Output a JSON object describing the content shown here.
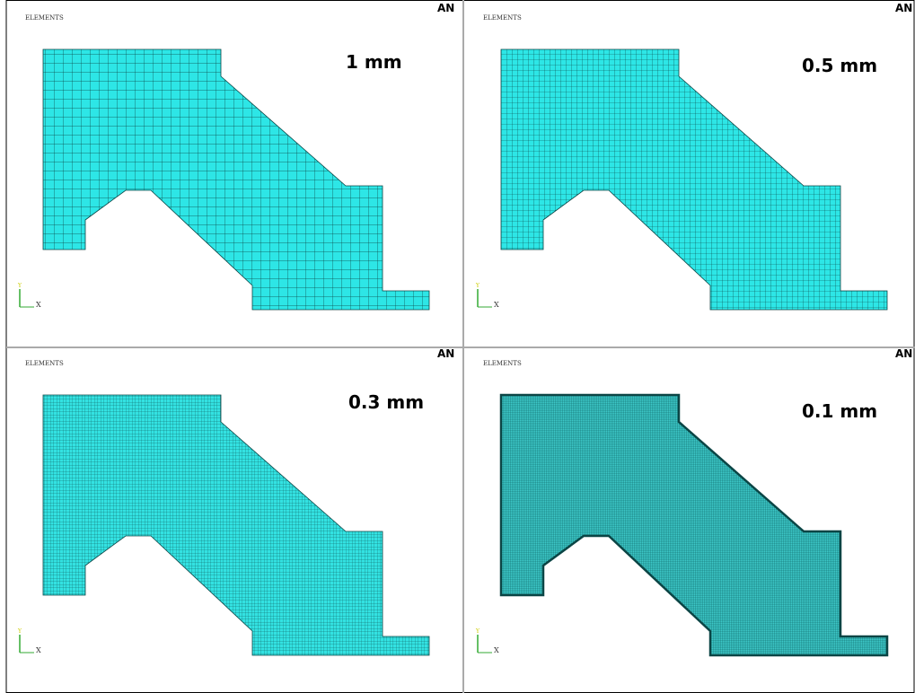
{
  "panels": [
    {
      "header": "ELEMENTS",
      "logo": "AN",
      "size_label": "1 mm",
      "axis_y": "Y",
      "axis_x": "X"
    },
    {
      "header": "ELEMENTS",
      "logo": "AN",
      "size_label": "0.5 mm",
      "axis_y": "Y",
      "axis_x": "X"
    },
    {
      "header": "ELEMENTS",
      "logo": "AN",
      "size_label": "0.3 mm",
      "axis_y": "Y",
      "axis_x": "X"
    },
    {
      "header": "ELEMENTS",
      "logo": "AN",
      "size_label": "0.1 mm",
      "axis_y": "Y",
      "axis_x": "X"
    }
  ]
}
